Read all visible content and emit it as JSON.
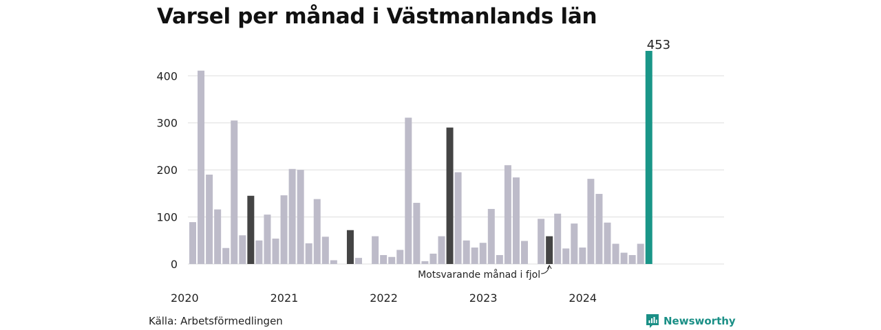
{
  "chart_data": {
    "type": "bar",
    "title": "Varsel per månad i Västmanlands län",
    "xlabel": "",
    "ylabel": "",
    "ylim": [
      0,
      453
    ],
    "yticks": [
      0,
      100,
      200,
      300,
      400
    ],
    "year_labels": [
      "2020",
      "2021",
      "2022",
      "2023",
      "2024"
    ],
    "categories": [
      "2020-01",
      "2020-02",
      "2020-03",
      "2020-04",
      "2020-05",
      "2020-06",
      "2020-07",
      "2020-08",
      "2020-09",
      "2020-10",
      "2020-11",
      "2020-12",
      "2021-01",
      "2021-02",
      "2021-03",
      "2021-04",
      "2021-05",
      "2021-06",
      "2021-07",
      "2021-08",
      "2021-09",
      "2021-10",
      "2021-11",
      "2021-12",
      "2022-01",
      "2022-02",
      "2022-03",
      "2022-04",
      "2022-05",
      "2022-06",
      "2022-07",
      "2022-08",
      "2022-09",
      "2022-10",
      "2022-11",
      "2022-12",
      "2023-01",
      "2023-02",
      "2023-03",
      "2023-04",
      "2023-05",
      "2023-06",
      "2023-07",
      "2023-08",
      "2023-09",
      "2023-10",
      "2023-11",
      "2023-12",
      "2024-01",
      "2024-02",
      "2024-03",
      "2024-04",
      "2024-05",
      "2024-06",
      "2024-07",
      "2024-08",
      "2024-09"
    ],
    "values": [
      89,
      411,
      190,
      116,
      34,
      305,
      61,
      145,
      50,
      105,
      54,
      146,
      202,
      200,
      44,
      138,
      58,
      8,
      0,
      72,
      13,
      0,
      59,
      19,
      15,
      30,
      311,
      130,
      6,
      22,
      59,
      290,
      195,
      50,
      35,
      45,
      117,
      19,
      210,
      184,
      49,
      0,
      96,
      59,
      107,
      33,
      86,
      35,
      181,
      149,
      88,
      43,
      24,
      19,
      43,
      453,
      0
    ],
    "highlight_same_month": [
      "2020-08",
      "2021-08",
      "2022-08",
      "2023-08"
    ],
    "highlight_current": "2024-08",
    "last_value_label": "453",
    "annotation": "Motsvarande månad i fjol",
    "colors": {
      "default": "#bdbbc9",
      "same_month": "#444444",
      "current": "#1a9688",
      "grid": "#dddddd"
    }
  },
  "source_text": "Källa: Arbetsförmedlingen",
  "brand_name": "Newsworthy"
}
